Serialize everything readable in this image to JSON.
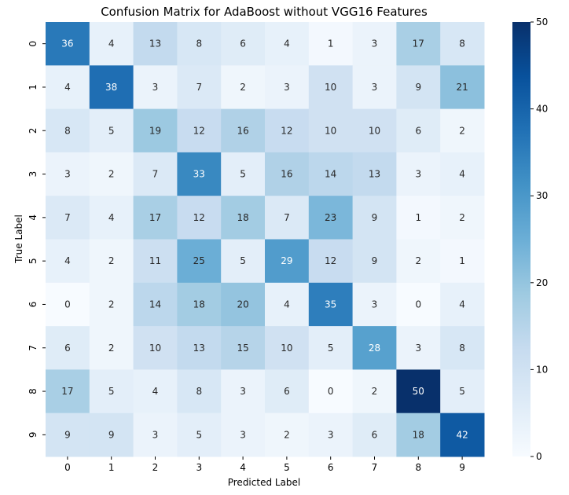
{
  "chart_data": {
    "type": "heatmap",
    "title": "Confusion Matrix for AdaBoost without VGG16 Features",
    "xlabel": "Predicted Label",
    "ylabel": "True Label",
    "x_categories": [
      "0",
      "1",
      "2",
      "3",
      "4",
      "5",
      "6",
      "7",
      "8",
      "9"
    ],
    "y_categories": [
      "0",
      "1",
      "2",
      "3",
      "4",
      "5",
      "6",
      "7",
      "8",
      "9"
    ],
    "values": [
      [
        36,
        4,
        13,
        8,
        6,
        4,
        1,
        3,
        17,
        8
      ],
      [
        4,
        38,
        3,
        7,
        2,
        3,
        10,
        3,
        9,
        21
      ],
      [
        8,
        5,
        19,
        12,
        16,
        12,
        10,
        10,
        6,
        2
      ],
      [
        3,
        2,
        7,
        33,
        5,
        16,
        14,
        13,
        3,
        4
      ],
      [
        7,
        4,
        17,
        12,
        18,
        7,
        23,
        9,
        1,
        2
      ],
      [
        4,
        2,
        11,
        25,
        5,
        29,
        12,
        9,
        2,
        1
      ],
      [
        0,
        2,
        14,
        18,
        20,
        4,
        35,
        3,
        0,
        4
      ],
      [
        6,
        2,
        10,
        13,
        15,
        10,
        5,
        28,
        3,
        8
      ],
      [
        17,
        5,
        4,
        8,
        3,
        6,
        0,
        2,
        50,
        5
      ],
      [
        9,
        9,
        3,
        5,
        3,
        2,
        3,
        6,
        18,
        42
      ]
    ],
    "colorbar": {
      "min": 0,
      "max": 50,
      "ticks": [
        0,
        10,
        20,
        30,
        40,
        50
      ]
    },
    "colormap": "Blues",
    "colormap_stops": [
      "#f7fbff",
      "#deebf7",
      "#c6dbef",
      "#9ecae1",
      "#6baed6",
      "#4292c6",
      "#2171b5",
      "#08519c",
      "#08306b"
    ]
  }
}
